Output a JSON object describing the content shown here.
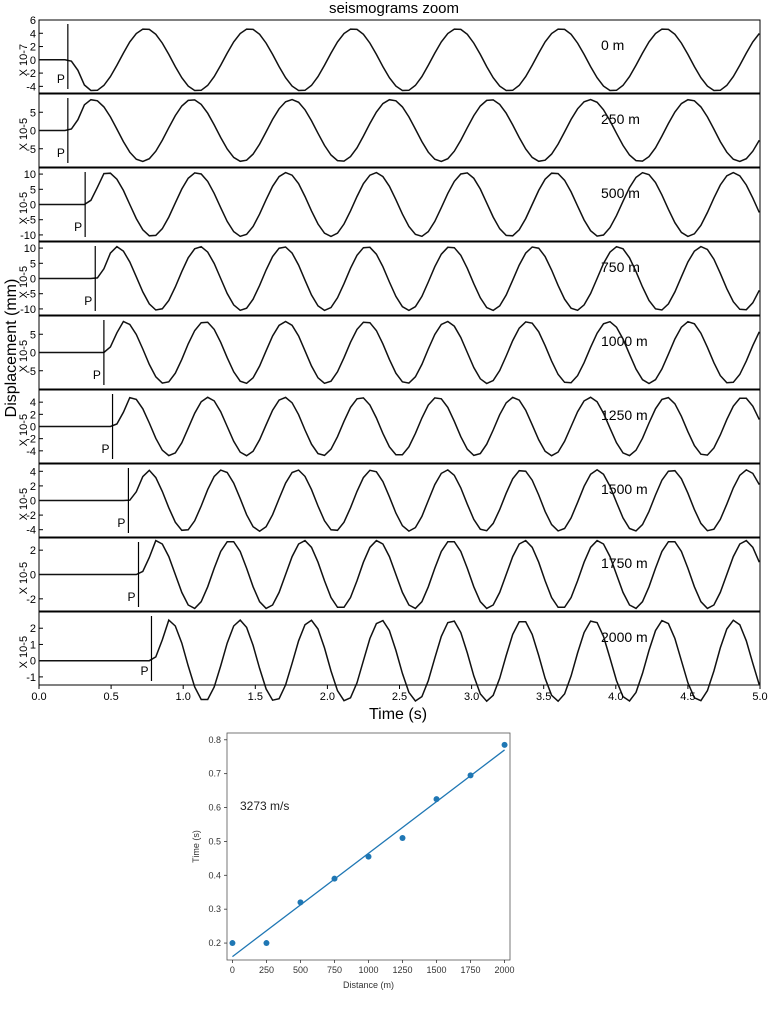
{
  "chart_data": [
    {
      "type": "line",
      "title": "seismograms zoom",
      "xlabel": "Time (s)",
      "ylabel": "Displacement (mm)",
      "xlim": [
        0.0,
        5.0
      ],
      "xticks": [
        "0.0",
        "0.5",
        "1.0",
        "1.5",
        "2.0",
        "2.5",
        "3.0",
        "3.5",
        "4.0",
        "4.5",
        "5.0"
      ],
      "pick_label": "P",
      "traces": [
        {
          "name": "0 m",
          "scale_label": "X 10-7",
          "ylim": [
            -5,
            6
          ],
          "yticks": [
            -4,
            -2,
            0,
            2,
            4,
            6
          ],
          "p_time": 0.2,
          "amplitude": 4.7,
          "onset_sign": -1
        },
        {
          "name": "250 m",
          "scale_label": "X 10-5",
          "ylim": [
            -10,
            10
          ],
          "yticks": [
            -5,
            0,
            5
          ],
          "p_time": 0.2,
          "amplitude": 8.5,
          "onset_sign": 1
        },
        {
          "name": "500 m",
          "scale_label": "X 10-5",
          "ylim": [
            -12,
            12
          ],
          "yticks": [
            -10,
            -5,
            0,
            5,
            10
          ],
          "p_time": 0.32,
          "amplitude": 10.5,
          "onset_sign": 1
        },
        {
          "name": "750 m",
          "scale_label": "X 10-5",
          "ylim": [
            -12,
            12
          ],
          "yticks": [
            -10,
            -5,
            0,
            5,
            10
          ],
          "p_time": 0.39,
          "amplitude": 10.5,
          "onset_sign": 1
        },
        {
          "name": "1000 m",
          "scale_label": "X 10-5",
          "ylim": [
            -10,
            10
          ],
          "yticks": [
            -5,
            0,
            5
          ],
          "p_time": 0.45,
          "amplitude": 8.5,
          "onset_sign": 1
        },
        {
          "name": "1250 m",
          "scale_label": "X 10-5",
          "ylim": [
            -6,
            6
          ],
          "yticks": [
            -4,
            -2,
            0,
            2,
            4
          ],
          "p_time": 0.51,
          "amplitude": 4.8,
          "onset_sign": 1
        },
        {
          "name": "1500 m",
          "scale_label": "X 10-5",
          "ylim": [
            -5,
            5
          ],
          "yticks": [
            -4,
            -2,
            0,
            2,
            4
          ],
          "p_time": 0.62,
          "amplitude": 4.2,
          "onset_sign": 1
        },
        {
          "name": "1750 m",
          "scale_label": "X 10-5",
          "ylim": [
            -3,
            3
          ],
          "yticks": [
            -2,
            0,
            2
          ],
          "p_time": 0.69,
          "amplitude": 2.8,
          "onset_sign": 1
        },
        {
          "name": "2000 m",
          "scale_label": "X 10-5",
          "ylim": [
            -1.5,
            3
          ],
          "yticks": [
            -1,
            0,
            1,
            2
          ],
          "p_time": 0.78,
          "amplitude": 2.5,
          "onset_sign": 1
        }
      ]
    },
    {
      "type": "scatter",
      "xlabel": "Distance (m)",
      "ylabel": "Time (s)",
      "xlim": [
        -40,
        2040
      ],
      "ylim": [
        0.15,
        0.82
      ],
      "xticks": [
        0,
        250,
        500,
        750,
        1000,
        1250,
        1500,
        1750,
        2000
      ],
      "yticks": [
        "0.2",
        "0.3",
        "0.4",
        "0.5",
        "0.6",
        "0.7",
        "0.8"
      ],
      "x": [
        0,
        250,
        500,
        750,
        1000,
        1250,
        1500,
        1750,
        2000
      ],
      "y": [
        0.2,
        0.2,
        0.32,
        0.39,
        0.455,
        0.51,
        0.625,
        0.695,
        0.785
      ],
      "fit": {
        "x": [
          0,
          2000
        ],
        "y": [
          0.16,
          0.77
        ]
      },
      "annotation": "3273 m/s",
      "color": "#1f77b4"
    }
  ]
}
